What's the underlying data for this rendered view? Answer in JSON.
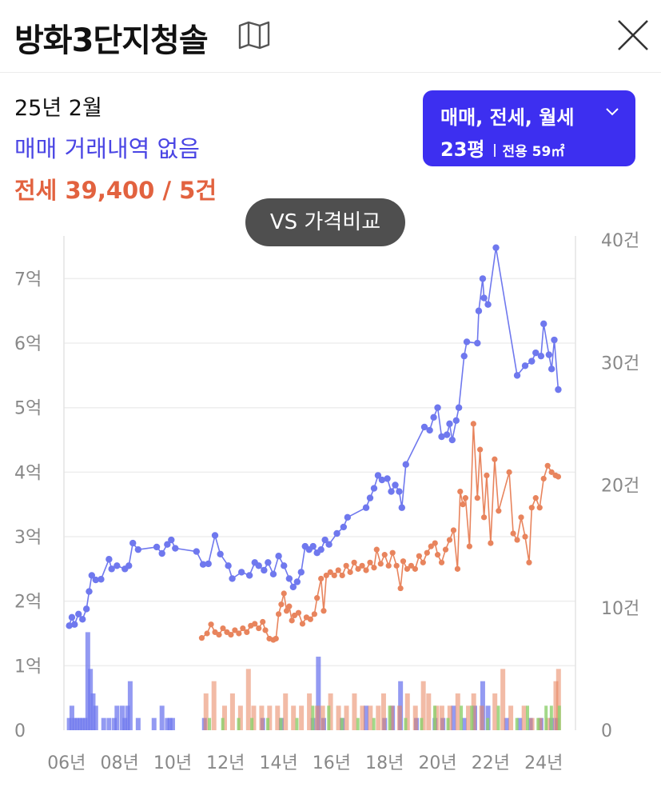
{
  "header": {
    "title": "방화3단지청솔",
    "map_icon": "map-icon",
    "close_icon": "close-icon"
  },
  "summary": {
    "date": "25년 2월",
    "sale_text": "매매 거래내역 없음",
    "lease_text": "전세 39,400 / 5건"
  },
  "filter": {
    "types_label": "매매, 전세, 월세",
    "size_label": "23평",
    "area_label": "전용 59㎡",
    "color": "#3d2ff0"
  },
  "compare_button": {
    "label": "VS 가격비교"
  },
  "colors": {
    "sale": "#6f78ee",
    "lease": "#e8845d",
    "lease_text": "#e2623f",
    "sale_text": "#4a45e4",
    "monthly_bar": "#8ccf6c"
  },
  "chart_data": {
    "type": "line",
    "x_unit": "year",
    "x_ticks": [
      "06년",
      "08년",
      "10년",
      "12년",
      "14년",
      "16년",
      "18년",
      "20년",
      "22년",
      "24년"
    ],
    "x_tick_values": [
      2006,
      2008,
      2010,
      2012,
      2014,
      2016,
      2018,
      2020,
      2022,
      2024
    ],
    "xlim": [
      2005.9,
      2025.2
    ],
    "y_left_ticks": [
      "0",
      "1억",
      "2억",
      "3억",
      "4억",
      "5억",
      "6억",
      "7억"
    ],
    "y_left_tick_values": [
      0,
      1,
      2,
      3,
      4,
      5,
      6,
      7
    ],
    "ylim_left": [
      0,
      7.6
    ],
    "y_right_ticks": [
      "0",
      "10건",
      "20건",
      "30건",
      "40건"
    ],
    "y_right_tick_values": [
      0,
      10,
      20,
      30,
      40
    ],
    "ylim_right": [
      0,
      40
    ],
    "grid": true,
    "series": [
      {
        "kind": "sale",
        "points": [
          [
            2006.1,
            1.62
          ],
          [
            2006.2,
            1.75
          ],
          [
            2006.3,
            1.64
          ],
          [
            2006.45,
            1.8
          ],
          [
            2006.6,
            1.72
          ],
          [
            2006.75,
            1.88
          ],
          [
            2006.85,
            2.15
          ],
          [
            2006.95,
            2.4
          ],
          [
            2007.1,
            2.33
          ],
          [
            2007.3,
            2.34
          ],
          [
            2007.6,
            2.65
          ],
          [
            2007.7,
            2.5
          ],
          [
            2007.9,
            2.55
          ],
          [
            2008.2,
            2.5
          ],
          [
            2008.35,
            2.55
          ],
          [
            2008.5,
            2.9
          ],
          [
            2008.7,
            2.8
          ],
          [
            2009.4,
            2.84
          ],
          [
            2009.6,
            2.74
          ],
          [
            2009.8,
            2.88
          ],
          [
            2009.95,
            2.95
          ],
          [
            2010.1,
            2.82
          ],
          [
            2010.9,
            2.77
          ],
          [
            2011.15,
            2.57
          ],
          [
            2011.35,
            2.58
          ],
          [
            2011.6,
            3.02
          ],
          [
            2011.8,
            2.73
          ],
          [
            2012.1,
            2.55
          ],
          [
            2012.25,
            2.35
          ],
          [
            2012.6,
            2.45
          ],
          [
            2012.9,
            2.4
          ],
          [
            2013.1,
            2.6
          ],
          [
            2013.25,
            2.55
          ],
          [
            2013.45,
            2.48
          ],
          [
            2013.6,
            2.6
          ],
          [
            2013.8,
            2.42
          ],
          [
            2014.0,
            2.7
          ],
          [
            2014.2,
            2.55
          ],
          [
            2014.4,
            2.35
          ],
          [
            2014.55,
            2.22
          ],
          [
            2014.7,
            2.3
          ],
          [
            2014.85,
            2.45
          ],
          [
            2015.0,
            2.85
          ],
          [
            2015.15,
            2.8
          ],
          [
            2015.3,
            2.85
          ],
          [
            2015.45,
            2.75
          ],
          [
            2015.6,
            2.8
          ],
          [
            2015.75,
            2.95
          ],
          [
            2015.9,
            2.88
          ],
          [
            2016.2,
            3.05
          ],
          [
            2016.45,
            3.15
          ],
          [
            2016.6,
            3.3
          ],
          [
            2017.3,
            3.45
          ],
          [
            2017.45,
            3.6
          ],
          [
            2017.6,
            3.75
          ],
          [
            2017.75,
            3.95
          ],
          [
            2017.9,
            3.88
          ],
          [
            2018.1,
            3.9
          ],
          [
            2018.25,
            3.7
          ],
          [
            2018.4,
            3.8
          ],
          [
            2018.55,
            3.7
          ],
          [
            2018.65,
            3.45
          ],
          [
            2018.8,
            4.12
          ],
          [
            2019.5,
            4.7
          ],
          [
            2019.7,
            4.65
          ],
          [
            2019.85,
            4.85
          ],
          [
            2020.0,
            5.0
          ],
          [
            2020.15,
            4.55
          ],
          [
            2020.35,
            4.58
          ],
          [
            2020.45,
            4.75
          ],
          [
            2020.55,
            4.5
          ],
          [
            2020.7,
            4.8
          ],
          [
            2020.8,
            5.0
          ],
          [
            2021.0,
            5.8
          ],
          [
            2021.1,
            6.02
          ],
          [
            2021.5,
            6.0
          ],
          [
            2021.55,
            6.5
          ],
          [
            2021.7,
            7.0
          ],
          [
            2021.75,
            6.7
          ],
          [
            2021.9,
            6.6
          ],
          [
            2022.2,
            7.48
          ],
          [
            2023.0,
            5.5
          ],
          [
            2023.3,
            5.65
          ],
          [
            2023.55,
            5.72
          ],
          [
            2023.7,
            5.85
          ],
          [
            2023.9,
            5.8
          ],
          [
            2024.0,
            6.3
          ],
          [
            2024.2,
            5.82
          ],
          [
            2024.3,
            5.6
          ],
          [
            2024.4,
            6.05
          ],
          [
            2024.55,
            5.28
          ]
        ]
      },
      {
        "kind": "lease",
        "points": [
          [
            2011.1,
            1.43
          ],
          [
            2011.3,
            1.5
          ],
          [
            2011.45,
            1.64
          ],
          [
            2011.6,
            1.52
          ],
          [
            2011.75,
            1.48
          ],
          [
            2011.9,
            1.58
          ],
          [
            2012.05,
            1.52
          ],
          [
            2012.2,
            1.48
          ],
          [
            2012.35,
            1.55
          ],
          [
            2012.5,
            1.5
          ],
          [
            2012.65,
            1.58
          ],
          [
            2012.8,
            1.52
          ],
          [
            2012.95,
            1.62
          ],
          [
            2013.1,
            1.65
          ],
          [
            2013.25,
            1.58
          ],
          [
            2013.4,
            1.68
          ],
          [
            2013.5,
            1.55
          ],
          [
            2013.65,
            1.42
          ],
          [
            2013.8,
            1.4
          ],
          [
            2013.9,
            1.42
          ],
          [
            2014.0,
            1.8
          ],
          [
            2014.1,
            1.95
          ],
          [
            2014.2,
            2.12
          ],
          [
            2014.3,
            1.85
          ],
          [
            2014.4,
            1.92
          ],
          [
            2014.5,
            1.7
          ],
          [
            2014.6,
            1.78
          ],
          [
            2014.75,
            1.82
          ],
          [
            2014.9,
            1.65
          ],
          [
            2015.05,
            1.75
          ],
          [
            2015.2,
            1.72
          ],
          [
            2015.35,
            1.8
          ],
          [
            2015.45,
            2.05
          ],
          [
            2015.6,
            2.35
          ],
          [
            2015.7,
            1.85
          ],
          [
            2015.8,
            2.4
          ],
          [
            2015.95,
            2.45
          ],
          [
            2016.1,
            2.4
          ],
          [
            2016.25,
            2.48
          ],
          [
            2016.4,
            2.4
          ],
          [
            2016.55,
            2.55
          ],
          [
            2016.7,
            2.45
          ],
          [
            2016.85,
            2.6
          ],
          [
            2017.0,
            2.5
          ],
          [
            2017.15,
            2.55
          ],
          [
            2017.3,
            2.48
          ],
          [
            2017.45,
            2.6
          ],
          [
            2017.6,
            2.52
          ],
          [
            2017.7,
            2.8
          ],
          [
            2017.85,
            2.58
          ],
          [
            2018.0,
            2.72
          ],
          [
            2018.15,
            2.55
          ],
          [
            2018.3,
            2.75
          ],
          [
            2018.45,
            2.55
          ],
          [
            2018.6,
            2.2
          ],
          [
            2018.7,
            2.62
          ],
          [
            2018.85,
            2.5
          ],
          [
            2019.0,
            2.55
          ],
          [
            2019.15,
            2.5
          ],
          [
            2019.3,
            2.7
          ],
          [
            2019.45,
            2.6
          ],
          [
            2019.6,
            2.75
          ],
          [
            2019.75,
            2.85
          ],
          [
            2019.9,
            2.9
          ],
          [
            2020.0,
            2.72
          ],
          [
            2020.15,
            2.6
          ],
          [
            2020.3,
            2.8
          ],
          [
            2020.45,
            2.95
          ],
          [
            2020.6,
            3.1
          ],
          [
            2020.75,
            2.5
          ],
          [
            2020.85,
            3.7
          ],
          [
            2020.95,
            3.5
          ],
          [
            2021.05,
            3.6
          ],
          [
            2021.2,
            2.85
          ],
          [
            2021.35,
            4.75
          ],
          [
            2021.5,
            3.6
          ],
          [
            2021.6,
            4.35
          ],
          [
            2021.75,
            3.3
          ],
          [
            2021.85,
            3.95
          ],
          [
            2022.0,
            2.9
          ],
          [
            2022.15,
            4.2
          ],
          [
            2022.3,
            3.4
          ],
          [
            2022.7,
            4.0
          ],
          [
            2022.85,
            3.05
          ],
          [
            2023.0,
            2.95
          ],
          [
            2023.15,
            3.3
          ],
          [
            2023.3,
            3.0
          ],
          [
            2023.45,
            2.6
          ],
          [
            2023.55,
            3.45
          ],
          [
            2023.7,
            3.6
          ],
          [
            2023.85,
            3.45
          ],
          [
            2024.0,
            3.9
          ],
          [
            2024.15,
            4.1
          ],
          [
            2024.3,
            4.0
          ],
          [
            2024.45,
            3.95
          ],
          [
            2024.55,
            3.93
          ]
        ]
      }
    ],
    "volume_bars": {
      "unit": "건",
      "sale": [
        [
          2006.1,
          1
        ],
        [
          2006.2,
          2
        ],
        [
          2006.3,
          1
        ],
        [
          2006.4,
          1
        ],
        [
          2006.5,
          1
        ],
        [
          2006.6,
          1
        ],
        [
          2006.7,
          1
        ],
        [
          2006.8,
          8
        ],
        [
          2006.9,
          5
        ],
        [
          2007.0,
          3
        ],
        [
          2007.1,
          2
        ],
        [
          2007.4,
          1
        ],
        [
          2007.6,
          1
        ],
        [
          2007.8,
          1
        ],
        [
          2007.9,
          2
        ],
        [
          2008.1,
          2
        ],
        [
          2008.2,
          1
        ],
        [
          2008.3,
          2
        ],
        [
          2008.4,
          4
        ],
        [
          2008.7,
          1
        ],
        [
          2009.3,
          1
        ],
        [
          2009.6,
          2
        ],
        [
          2009.8,
          1
        ],
        [
          2009.9,
          1
        ],
        [
          2010.0,
          1
        ],
        [
          2011.2,
          1
        ],
        [
          2013.4,
          1
        ],
        [
          2014.1,
          1
        ],
        [
          2015.3,
          1
        ],
        [
          2015.5,
          6
        ],
        [
          2015.7,
          1
        ],
        [
          2016.4,
          1
        ],
        [
          2017.3,
          2
        ],
        [
          2018.0,
          1
        ],
        [
          2018.3,
          2
        ],
        [
          2018.6,
          4
        ],
        [
          2019.2,
          1
        ],
        [
          2019.9,
          1
        ],
        [
          2020.2,
          1
        ],
        [
          2020.6,
          2
        ],
        [
          2021.0,
          1
        ],
        [
          2021.4,
          2
        ],
        [
          2021.7,
          4
        ],
        [
          2021.9,
          2
        ],
        [
          2022.6,
          1
        ],
        [
          2023.1,
          1
        ],
        [
          2023.5,
          1
        ],
        [
          2023.9,
          1
        ],
        [
          2024.3,
          1
        ],
        [
          2024.5,
          1
        ]
      ],
      "lease": [
        [
          2011.2,
          3
        ],
        [
          2011.5,
          4
        ],
        [
          2011.9,
          2
        ],
        [
          2012.2,
          3
        ],
        [
          2012.5,
          2
        ],
        [
          2012.8,
          5
        ],
        [
          2013.0,
          2
        ],
        [
          2013.3,
          2
        ],
        [
          2013.6,
          2
        ],
        [
          2013.9,
          2
        ],
        [
          2014.2,
          3
        ],
        [
          2014.5,
          2
        ],
        [
          2014.8,
          2
        ],
        [
          2015.1,
          3
        ],
        [
          2015.4,
          2
        ],
        [
          2015.6,
          2
        ],
        [
          2015.9,
          3
        ],
        [
          2016.2,
          2
        ],
        [
          2016.5,
          2
        ],
        [
          2016.8,
          3
        ],
        [
          2017.1,
          2
        ],
        [
          2017.4,
          2
        ],
        [
          2017.7,
          2
        ],
        [
          2017.9,
          3
        ],
        [
          2018.2,
          2
        ],
        [
          2018.5,
          2
        ],
        [
          2018.8,
          3
        ],
        [
          2019.1,
          2
        ],
        [
          2019.4,
          4
        ],
        [
          2019.6,
          3
        ],
        [
          2019.9,
          2
        ],
        [
          2020.1,
          2
        ],
        [
          2020.4,
          2
        ],
        [
          2020.7,
          3
        ],
        [
          2021.1,
          2
        ],
        [
          2021.3,
          3
        ],
        [
          2021.6,
          2
        ],
        [
          2022.1,
          3
        ],
        [
          2022.4,
          5
        ],
        [
          2022.7,
          2
        ],
        [
          2023.2,
          2
        ],
        [
          2023.5,
          1
        ],
        [
          2023.8,
          1
        ],
        [
          2024.1,
          1
        ],
        [
          2024.4,
          4
        ],
        [
          2024.5,
          5
        ]
      ],
      "monthly": [
        [
          2011.3,
          1
        ],
        [
          2011.8,
          1
        ],
        [
          2012.4,
          1
        ],
        [
          2012.9,
          1
        ],
        [
          2013.5,
          1
        ],
        [
          2014.0,
          1
        ],
        [
          2014.6,
          1
        ],
        [
          2015.2,
          2
        ],
        [
          2015.8,
          2
        ],
        [
          2016.3,
          1
        ],
        [
          2016.9,
          1
        ],
        [
          2017.5,
          1
        ],
        [
          2018.1,
          2
        ],
        [
          2018.7,
          1
        ],
        [
          2019.3,
          1
        ],
        [
          2019.8,
          2
        ],
        [
          2020.3,
          1
        ],
        [
          2020.8,
          2
        ],
        [
          2021.2,
          2
        ],
        [
          2021.8,
          1
        ],
        [
          2022.2,
          2
        ],
        [
          2022.9,
          1
        ],
        [
          2023.3,
          2
        ],
        [
          2023.7,
          1
        ],
        [
          2024.0,
          2
        ],
        [
          2024.2,
          2
        ],
        [
          2024.5,
          2
        ]
      ]
    }
  }
}
